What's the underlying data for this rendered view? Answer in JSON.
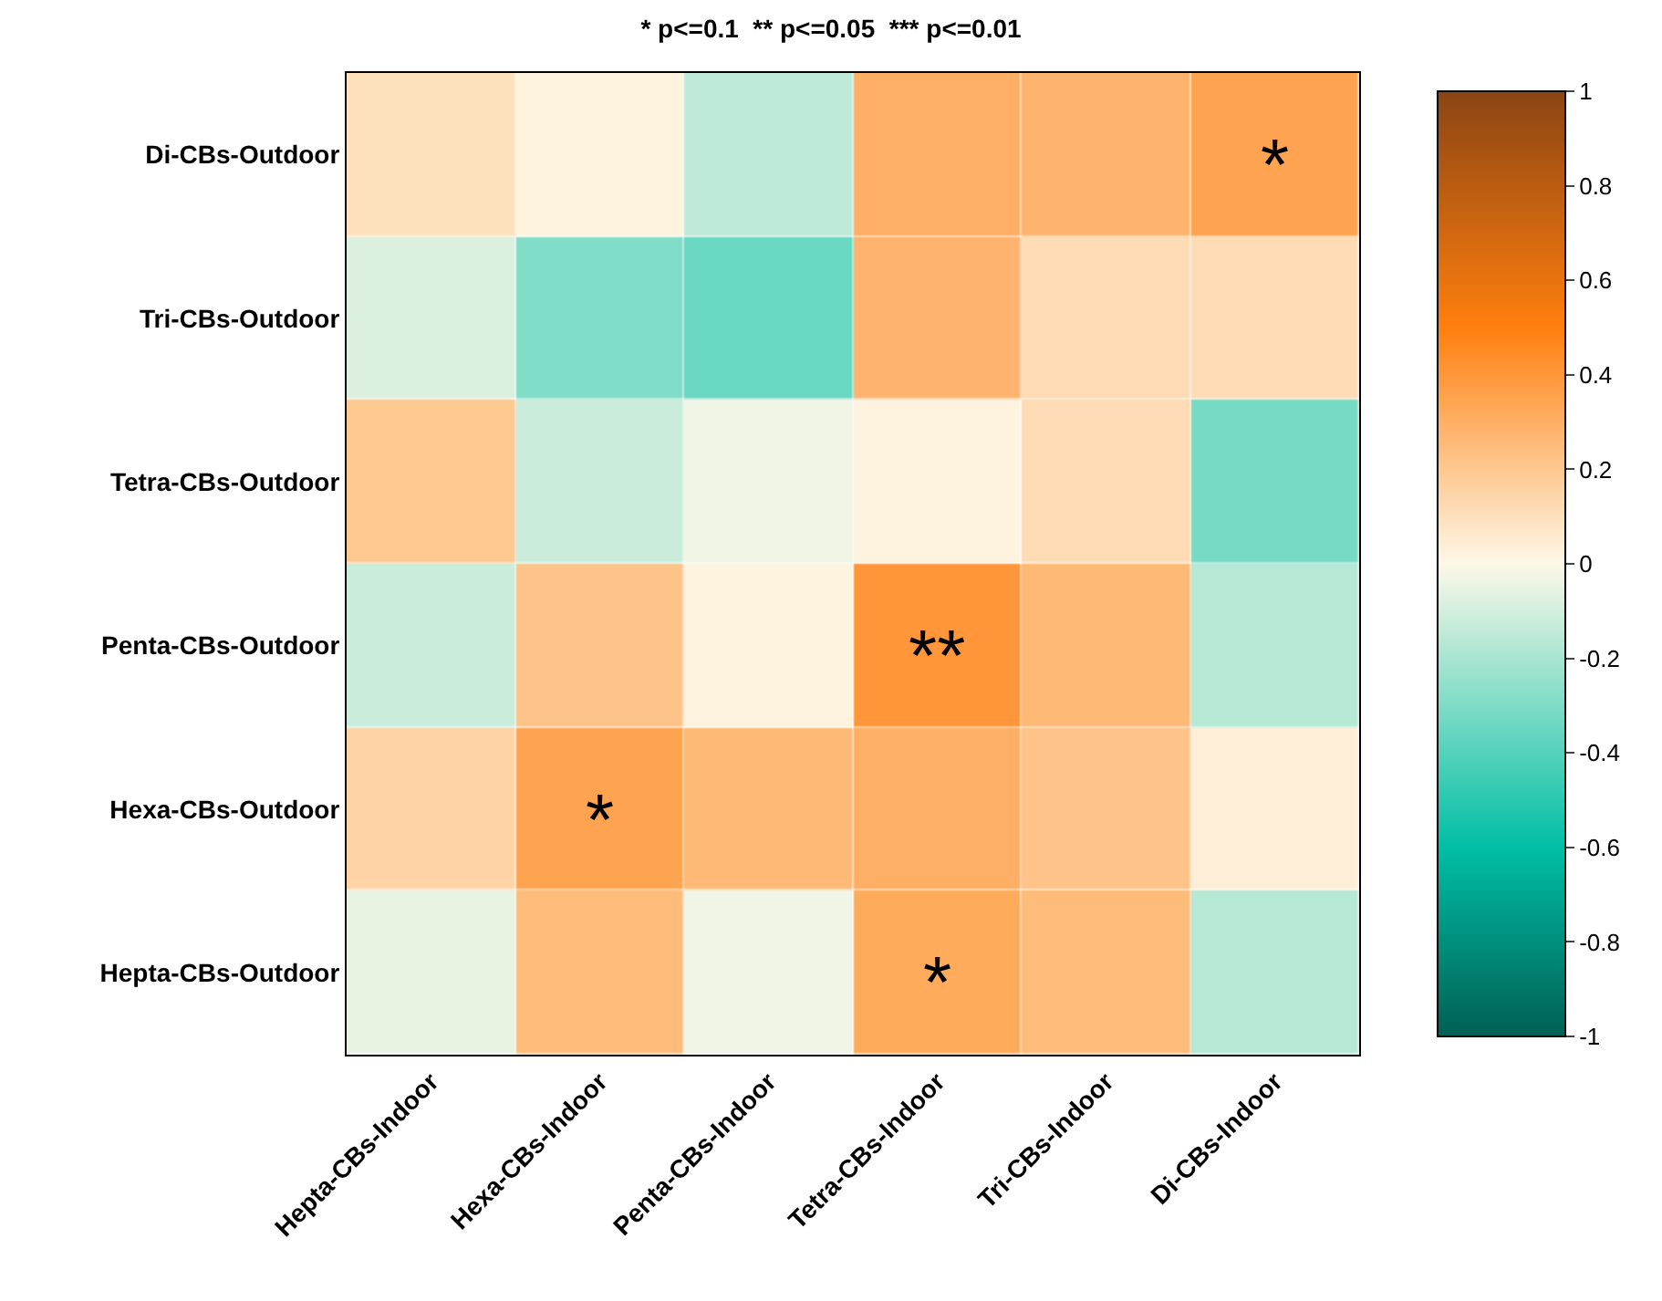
{
  "chart_data": {
    "type": "heatmap",
    "title": "* p<=0.1  ** p<=0.05  *** p<=0.01",
    "categories": [
      "Hepta-CBs-Indoor",
      "Hexa-CBs-Indoor",
      "Penta-CBs-Indoor",
      "Tetra-CBs-Indoor",
      "Tri-CBs-Indoor",
      "Di-CBs-Indoor"
    ],
    "y_categories": [
      "Di-CBs-Outdoor",
      "Tri-CBs-Outdoor",
      "Tetra-CBs-Outdoor",
      "Penta-CBs-Outdoor",
      "Hexa-CBs-Outdoor",
      "Hepta-CBs-Outdoor"
    ],
    "cells": [
      [
        0.1,
        0.02,
        -0.15,
        0.3,
        0.28,
        0.35
      ],
      [
        -0.08,
        -0.3,
        -0.35,
        0.28,
        0.12,
        0.12
      ],
      [
        0.2,
        -0.12,
        -0.03,
        0.02,
        0.12,
        -0.32
      ],
      [
        -0.12,
        0.22,
        0.02,
        0.4,
        0.26,
        -0.17
      ],
      [
        0.15,
        0.35,
        0.26,
        0.3,
        0.22,
        0.04
      ],
      [
        -0.05,
        0.25,
        -0.03,
        0.32,
        0.25,
        -0.17
      ]
    ],
    "cell_labels": [
      [
        null,
        null,
        null,
        null,
        null,
        "*"
      ],
      [
        null,
        null,
        null,
        null,
        null,
        null
      ],
      [
        null,
        null,
        null,
        null,
        null,
        null
      ],
      [
        null,
        null,
        null,
        "**",
        null,
        null
      ],
      [
        null,
        "*",
        null,
        null,
        null,
        null
      ],
      [
        null,
        null,
        null,
        "*",
        null,
        null
      ]
    ],
    "clim": [
      -1,
      1
    ],
    "cticks": [
      1,
      0.8,
      0.6,
      0.4,
      0.2,
      0,
      -0.2,
      -0.4,
      -0.6,
      -0.8,
      -1
    ]
  }
}
